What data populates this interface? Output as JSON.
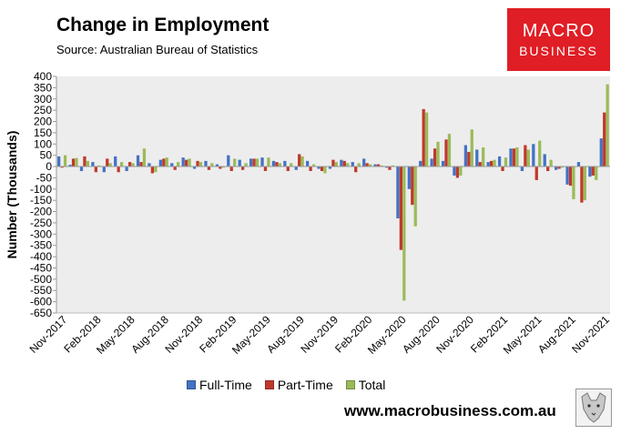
{
  "title": "Change in Employment",
  "subtitle": "Source: Australian Bureau of Statistics",
  "logo": {
    "line1": "MACRO",
    "line2": "BUSINESS"
  },
  "website": "www.macrobusiness.com.au",
  "colors": {
    "full_time": "#4472c4",
    "part_time": "#c0392b",
    "total": "#9bbb59",
    "plot_bg": "#ededed",
    "brand": "#e01e25"
  },
  "chart_data": {
    "type": "bar",
    "ylabel": "Number (Thousands)",
    "ylim": [
      -650,
      400
    ],
    "yticks": [
      400,
      350,
      300,
      250,
      200,
      150,
      100,
      50,
      0,
      -50,
      -100,
      -150,
      -200,
      -250,
      -300,
      -350,
      -400,
      -450,
      -500,
      -550,
      -600,
      -650
    ],
    "legend_position": "bottom",
    "grid": false,
    "categories": [
      "Nov-2017",
      "Dec-2017",
      "Jan-2018",
      "Feb-2018",
      "Mar-2018",
      "Apr-2018",
      "May-2018",
      "Jun-2018",
      "Jul-2018",
      "Aug-2018",
      "Sep-2018",
      "Oct-2018",
      "Nov-2018",
      "Dec-2018",
      "Jan-2019",
      "Feb-2019",
      "Mar-2019",
      "Apr-2019",
      "May-2019",
      "Jun-2019",
      "Jul-2019",
      "Aug-2019",
      "Sep-2019",
      "Oct-2019",
      "Nov-2019",
      "Dec-2019",
      "Jan-2020",
      "Feb-2020",
      "Mar-2020",
      "Apr-2020",
      "May-2020",
      "Jun-2020",
      "Jul-2020",
      "Aug-2020",
      "Sep-2020",
      "Oct-2020",
      "Nov-2020",
      "Dec-2020",
      "Jan-2021",
      "Feb-2021",
      "Mar-2021",
      "Apr-2021",
      "May-2021",
      "Jun-2021",
      "Jul-2021",
      "Aug-2021",
      "Sep-2021",
      "Oct-2021",
      "Nov-2021"
    ],
    "xtick_labels": [
      "Nov-2017",
      "Feb-2018",
      "May-2018",
      "Aug-2018",
      "Nov-2018",
      "Feb-2019",
      "May-2019",
      "Aug-2019",
      "Nov-2019",
      "Feb-2020",
      "May-2020",
      "Aug-2020",
      "Nov-2020",
      "Feb-2021",
      "May-2021",
      "Aug-2021",
      "Nov-2021"
    ],
    "series": [
      {
        "name": "Full-Time",
        "values": [
          45,
          8,
          -20,
          20,
          -25,
          45,
          -20,
          50,
          15,
          30,
          15,
          40,
          -10,
          25,
          10,
          50,
          30,
          35,
          40,
          25,
          25,
          -15,
          25,
          -10,
          -10,
          30,
          20,
          35,
          10,
          -5,
          -230,
          -100,
          25,
          35,
          25,
          -40,
          95,
          75,
          20,
          45,
          80,
          -20,
          100,
          55,
          -15,
          -80,
          20,
          -45,
          125
        ]
      },
      {
        "name": "Part-Time",
        "values": [
          -5,
          35,
          45,
          -25,
          35,
          -25,
          20,
          20,
          -30,
          35,
          -15,
          30,
          25,
          -15,
          -10,
          -20,
          -15,
          35,
          -20,
          20,
          -20,
          55,
          -20,
          -20,
          30,
          25,
          -25,
          15,
          10,
          -15,
          -370,
          -170,
          255,
          80,
          120,
          -50,
          65,
          20,
          25,
          -20,
          80,
          95,
          -60,
          -20,
          -10,
          -85,
          -160,
          -40,
          240
        ]
      },
      {
        "name": "Total",
        "values": [
          50,
          38,
          25,
          5,
          15,
          20,
          15,
          80,
          -25,
          40,
          20,
          35,
          20,
          15,
          -5,
          35,
          15,
          35,
          40,
          15,
          15,
          45,
          10,
          -30,
          20,
          15,
          15,
          10,
          5,
          5,
          -595,
          -265,
          240,
          110,
          145,
          -40,
          165,
          85,
          30,
          40,
          85,
          75,
          115,
          30,
          -5,
          -145,
          -150,
          -60,
          365
        ]
      }
    ]
  }
}
